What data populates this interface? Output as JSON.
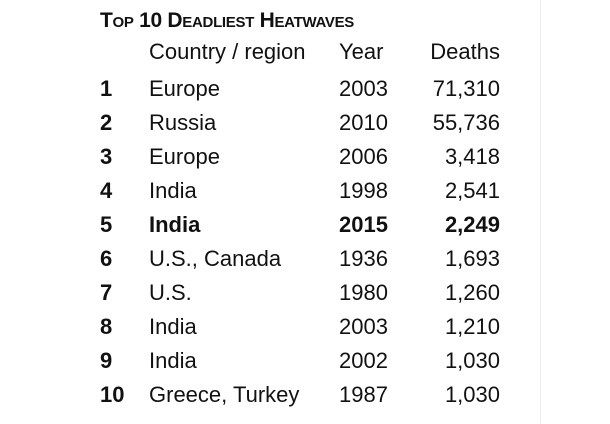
{
  "title": "Top 10 Deadliest Heatwaves",
  "headers": {
    "country": "Country / region",
    "year": "Year",
    "deaths": "Deaths"
  },
  "rows": [
    {
      "rank": "1",
      "country": "Europe",
      "year": "2003",
      "deaths": "71,310"
    },
    {
      "rank": "2",
      "country": "Russia",
      "year": "2010",
      "deaths": "55,736"
    },
    {
      "rank": "3",
      "country": "Europe",
      "year": "2006",
      "deaths": "3,418"
    },
    {
      "rank": "4",
      "country": "India",
      "year": "1998",
      "deaths": "2,541"
    },
    {
      "rank": "5",
      "country": "India",
      "year": "2015",
      "deaths": "2,249"
    },
    {
      "rank": "6",
      "country": "U.S., Canada",
      "year": "1936",
      "deaths": "1,693"
    },
    {
      "rank": "7",
      "country": "U.S.",
      "year": "1980",
      "deaths": "1,260"
    },
    {
      "rank": "8",
      "country": "India",
      "year": "2003",
      "deaths": "1,210"
    },
    {
      "rank": "9",
      "country": "India",
      "year": "2002",
      "deaths": "1,030"
    },
    {
      "rank": "10",
      "country": "Greece, Turkey",
      "year": "1987",
      "deaths": "1,030"
    }
  ]
}
